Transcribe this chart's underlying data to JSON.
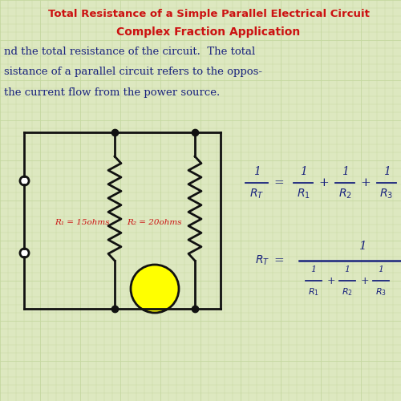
{
  "bg_color": "#dde8c0",
  "grid_color_major": "#c5d8a0",
  "grid_color_minor": "#d5e4b0",
  "title1": "Total Resistance of a Simple Parallel Electrical Circuit",
  "title2": "Complex Fraction Application",
  "title_color": "#cc1111",
  "body_text_color": "#1a237e",
  "body_lines": [
    "nd the total resistance of the circuit.  The total",
    "sistance of a parallel circuit refers to the oppos-",
    "the current flow from the power source."
  ],
  "formula_color": "#1a237e",
  "circuit_color": "#111111",
  "resistor_color": "#cc1111",
  "resistor_label1": "R₁ = 15ohms",
  "resistor_label2": "R₂ = 20ohms",
  "bulb_color": "#ffff00",
  "lw": 2.0
}
